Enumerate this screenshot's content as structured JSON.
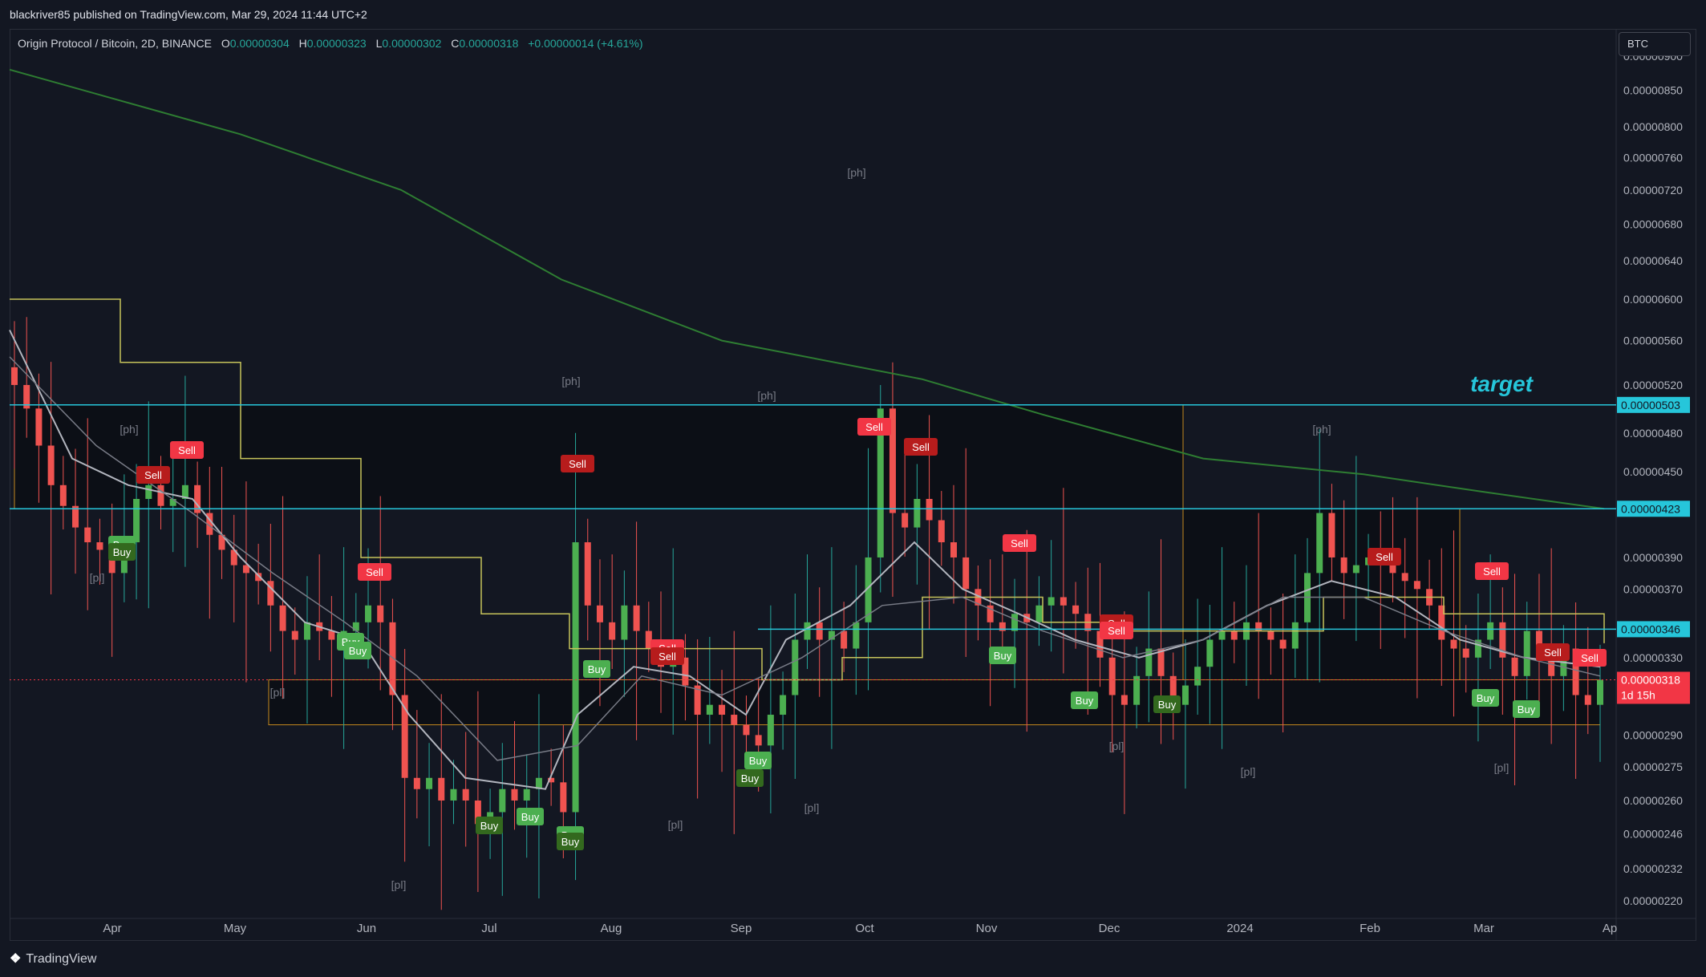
{
  "header": {
    "published": "blackriver85 published on TradingView.com, Mar 29, 2024 11:44 UTC+2"
  },
  "symbol": {
    "name": "Origin Protocol / Bitcoin, 2D, BINANCE",
    "o_label": "O",
    "o_value": "0.00000304",
    "h_label": "H",
    "h_value": "0.00000323",
    "l_label": "L",
    "l_value": "0.00000302",
    "c_label": "C",
    "c_value": "0.00000318",
    "change": "+0.00000014 (+4.61%)"
  },
  "currency_button": "BTC",
  "footer": {
    "brand": "TradingView"
  },
  "colors": {
    "background": "#131722",
    "up": "#26a69a",
    "up_candle": "#4caf50",
    "down": "#ef5350",
    "ema200": "#2e7d32",
    "stepline": "#c6c35b",
    "ma_fast": "#b2b5be",
    "ma_slow": "#787b86",
    "target_line": "#26c6da",
    "box_border": "#c58a1e",
    "current_price": "#f23645"
  },
  "chart_data": {
    "type": "candlestick",
    "title": "Origin Protocol / Bitcoin, 2D, BINANCE",
    "xlabel": "",
    "ylabel": "",
    "x_ticks": [
      "Apr",
      "May",
      "Jun",
      "Jul",
      "Aug",
      "Sep",
      "Oct",
      "Nov",
      "Dec",
      "2024",
      "Feb",
      "Mar",
      "Ap"
    ],
    "y_ticks": [
      "0.00000900",
      "0.00000850",
      "0.00000800",
      "0.00000760",
      "0.00000720",
      "0.00000680",
      "0.00000640",
      "0.00000600",
      "0.00000560",
      "0.00000520",
      "0.00000480",
      "0.00000450",
      "0.00000390",
      "0.00000370",
      "0.00000330",
      "0.00000290",
      "0.00000275",
      "0.00000260",
      "0.00000246",
      "0.00000232",
      "0.00000220"
    ],
    "ylim": [
      2.15e-06,
      9e-06
    ],
    "y_scale": "log",
    "grid": false,
    "candles_close": [
      5.2e-06,
      5e-06,
      4.7e-06,
      4.4e-06,
      4.25e-06,
      4.1e-06,
      4e-06,
      3.95e-06,
      3.8e-06,
      4e-06,
      4.3e-06,
      4.4e-06,
      4.25e-06,
      4.3e-06,
      4.4e-06,
      4.2e-06,
      4.05e-06,
      3.95e-06,
      3.85e-06,
      3.8e-06,
      3.75e-06,
      3.6e-06,
      3.45e-06,
      3.4e-06,
      3.5e-06,
      3.45e-06,
      3.4e-06,
      3.45e-06,
      3.5e-06,
      3.6e-06,
      3.5e-06,
      3.1e-06,
      2.7e-06,
      2.65e-06,
      2.7e-06,
      2.6e-06,
      2.65e-06,
      2.6e-06,
      2.5e-06,
      2.55e-06,
      2.65e-06,
      2.6e-06,
      2.65e-06,
      2.7e-06,
      2.68e-06,
      2.55e-06,
      4e-06,
      3.6e-06,
      3.5e-06,
      3.4e-06,
      3.6e-06,
      3.45e-06,
      3.35e-06,
      3.25e-06,
      3.3e-06,
      3.15e-06,
      3e-06,
      3.05e-06,
      3e-06,
      2.95e-06,
      2.9e-06,
      2.85e-06,
      3e-06,
      3.1e-06,
      3.4e-06,
      3.5e-06,
      3.4e-06,
      3.45e-06,
      3.35e-06,
      3.5e-06,
      3.9e-06,
      5e-06,
      4.2e-06,
      4.1e-06,
      4.3e-06,
      4.15e-06,
      4e-06,
      3.9e-06,
      3.7e-06,
      3.6e-06,
      3.5e-06,
      3.45e-06,
      3.55e-06,
      3.5e-06,
      3.6e-06,
      3.65e-06,
      3.6e-06,
      3.55e-06,
      3.45e-06,
      3.3e-06,
      3.1e-06,
      3.05e-06,
      3.2e-06,
      3.35e-06,
      3.2e-06,
      3.05e-06,
      3.15e-06,
      3.25e-06,
      3.4e-06,
      3.45e-06,
      3.4e-06,
      3.5e-06,
      3.45e-06,
      3.4e-06,
      3.35e-06,
      3.5e-06,
      3.8e-06,
      4.2e-06,
      3.9e-06,
      3.8e-06,
      3.85e-06,
      3.9e-06,
      3.85e-06,
      3.8e-06,
      3.75e-06,
      3.7e-06,
      3.6e-06,
      3.4e-06,
      3.35e-06,
      3.3e-06,
      3.4e-06,
      3.5e-06,
      3.3e-06,
      3.2e-06,
      3.45e-06,
      3.3e-06,
      3.2e-06,
      3.35e-06,
      3.1e-06,
      3.05e-06,
      3.18e-06
    ],
    "overlays": [
      {
        "name": "EMA 200",
        "color": "#2e7d32"
      },
      {
        "name": "Step line",
        "color": "#c6c35b"
      },
      {
        "name": "Fast MA",
        "color": "#b2b5be"
      },
      {
        "name": "Slow MA",
        "color": "#787b86"
      }
    ],
    "levels": [
      {
        "price": "0.00000503",
        "label": "target",
        "color": "#26c6da"
      },
      {
        "price": "0.00000423",
        "color": "#26c6da"
      },
      {
        "price": "0.00000346",
        "color": "#26c6da"
      },
      {
        "price": "0.00000318",
        "color": "#f23645",
        "countdown": "1d 15h"
      }
    ],
    "pivot_labels": [
      "[ph]",
      "[ph]",
      "[ph]",
      "[ph]",
      "[ph]",
      "[pl]",
      "[pl]",
      "[pl]",
      "[pl]",
      "[pl]",
      "[pl]",
      "[pl]",
      "[pl]"
    ],
    "signals": {
      "sell": [
        "Sell",
        "Sell",
        "Sell",
        "Sell",
        "Sell",
        "Sell",
        "Sell",
        "Sell",
        "Sell",
        "Sell",
        "Sell",
        "Sell",
        "Sell",
        "Sell",
        "Sell"
      ],
      "buy": [
        "Buy",
        "Buy",
        "Buy",
        "Buy",
        "Buy",
        "Buy",
        "Buy",
        "Buy",
        "Buy",
        "Buy",
        "Buy",
        "Buy",
        "Buy",
        "Buy",
        "Buy",
        "Buy"
      ]
    },
    "target_label": "target"
  }
}
